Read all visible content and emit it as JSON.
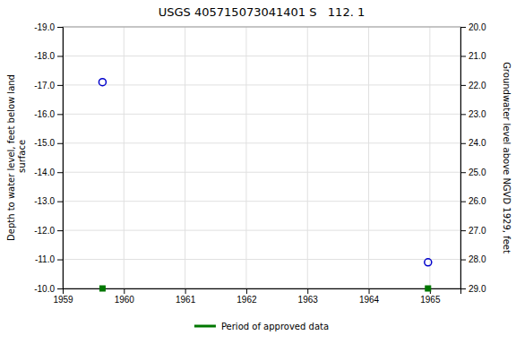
{
  "chart_data": {
    "type": "scatter",
    "title": "USGS 405715073041401 S   112. 1",
    "ylabel": "Depth to water level, feet below land\n surface",
    "y2label": "Groundwater level above NGVD 1929, feet",
    "xlim": [
      1959.0,
      1965.5
    ],
    "xticks": [
      1959,
      1960,
      1961,
      1962,
      1963,
      1964,
      1965
    ],
    "ylim": [
      -10.0,
      -19.0
    ],
    "yticks": [
      {
        "value": -19.0,
        "label": "-19.0"
      },
      {
        "value": -18.0,
        "label": "-18.0"
      },
      {
        "value": -17.0,
        "label": "-17.0"
      },
      {
        "value": -16.0,
        "label": "-16.0"
      },
      {
        "value": -15.0,
        "label": "-15.0"
      },
      {
        "value": -14.0,
        "label": "-14.0"
      },
      {
        "value": -13.0,
        "label": "-13.0"
      },
      {
        "value": -12.0,
        "label": "-12.0"
      },
      {
        "value": -11.0,
        "label": "-11.0"
      },
      {
        "value": -10.0,
        "label": "-10.0"
      }
    ],
    "y2lim": [
      29.0,
      20.0
    ],
    "y2ticks": [
      {
        "value": 29.0,
        "label": "29.0"
      },
      {
        "value": 28.0,
        "label": "28.0"
      },
      {
        "value": 27.0,
        "label": "27.0"
      },
      {
        "value": 26.0,
        "label": "26.0"
      },
      {
        "value": 25.0,
        "label": "25.0"
      },
      {
        "value": 24.0,
        "label": "24.0"
      },
      {
        "value": 23.0,
        "label": "23.0"
      },
      {
        "value": 22.0,
        "label": "22.0"
      },
      {
        "value": 21.0,
        "label": "21.0"
      },
      {
        "value": 20.0,
        "label": "20.0"
      }
    ],
    "grid": true,
    "legend": "bottom",
    "series": [
      {
        "color": "#0000cc",
        "marker": "circle",
        "x": [
          1959.65,
          1964.97
        ],
        "values": [
          -17.1,
          -10.9
        ]
      },
      {
        "name": "Period of approved data",
        "color": "#007700",
        "marker": "square",
        "x": [
          1959.65,
          1964.97
        ],
        "values": [
          -10.0,
          -10.0
        ]
      }
    ]
  }
}
